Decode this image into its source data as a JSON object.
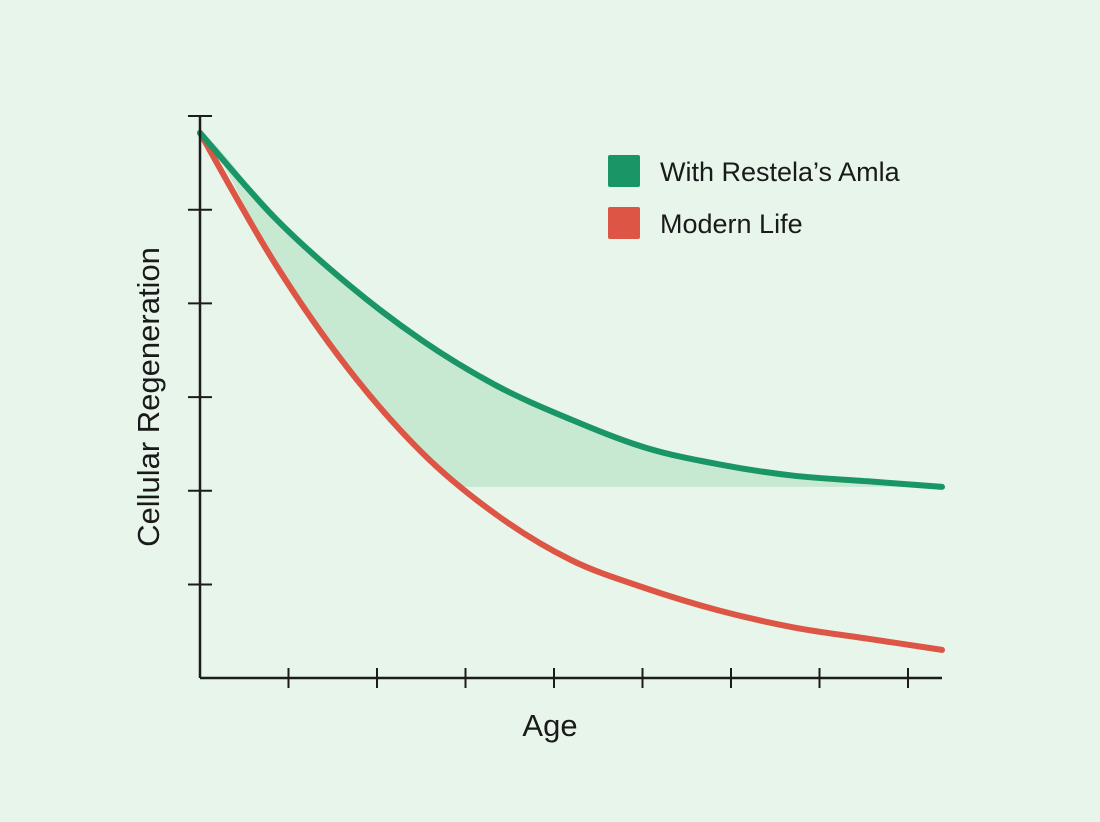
{
  "chart_data": {
    "type": "line",
    "title": "",
    "xlabel": "Age",
    "ylabel": "Cellular Regeneration",
    "x_ticks": 8,
    "y_ticks": 6,
    "x_range": [
      0,
      1
    ],
    "y_range": [
      0,
      1
    ],
    "grid": false,
    "legend_position": "top-right",
    "series": [
      {
        "name": "With Restela’s Amla",
        "color": "#1a9565",
        "x": [
          0,
          0.1,
          0.2,
          0.3,
          0.4,
          0.5,
          0.6,
          0.7,
          0.8,
          0.9,
          1.0
        ],
        "y": [
          0.97,
          0.82,
          0.7,
          0.6,
          0.52,
          0.46,
          0.41,
          0.38,
          0.36,
          0.35,
          0.34
        ]
      },
      {
        "name": "Modern Life",
        "color": "#dd5545",
        "x": [
          0,
          0.1,
          0.2,
          0.3,
          0.4,
          0.5,
          0.6,
          0.7,
          0.8,
          0.9,
          1.0
        ],
        "y": [
          0.97,
          0.74,
          0.55,
          0.4,
          0.29,
          0.21,
          0.16,
          0.12,
          0.09,
          0.07,
          0.05
        ]
      }
    ],
    "shaded_gap": {
      "between": [
        "With Restela’s Amla",
        "Modern Life"
      ],
      "floor_y": 0.34,
      "color": "#c3e8cf"
    }
  }
}
